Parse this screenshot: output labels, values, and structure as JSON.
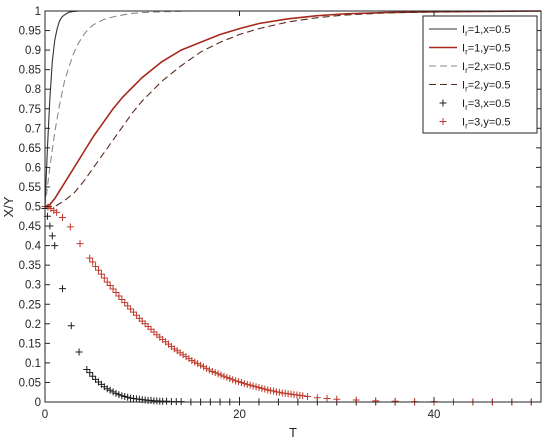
{
  "chart_data": {
    "type": "line",
    "xlabel": "T",
    "ylabel": "X/Y",
    "xlim": [
      0,
      51
    ],
    "ylim": [
      0,
      1
    ],
    "x_ticks": [
      0,
      20,
      40
    ],
    "x_tick_labels": [
      "0",
      "20",
      "40"
    ],
    "y_ticks": [
      0,
      0.05,
      0.1,
      0.15,
      0.2,
      0.25,
      0.3,
      0.35,
      0.4,
      0.45,
      0.5,
      0.55,
      0.6,
      0.65,
      0.7,
      0.75,
      0.8,
      0.85,
      0.9,
      0.95,
      1
    ],
    "y_tick_labels": [
      "0",
      "0.05",
      "0.1",
      "0.15",
      "0.2",
      "0.25",
      "0.3",
      "0.35",
      "0.4",
      "0.45",
      "0.5",
      "0.55",
      "0.6",
      "0.65",
      "0.7",
      "0.75",
      "0.8",
      "0.85",
      "0.9",
      "0.95",
      "1"
    ],
    "grid": false,
    "legend_position": "top-right",
    "series": [
      {
        "name": "Ir=1,x=0.5",
        "label_main": "I",
        "label_sub": "r",
        "label_rest": "=1,x=0.5",
        "style": "solid",
        "marker": "none",
        "color": "#333333",
        "x": [
          0,
          0.25,
          0.5,
          0.75,
          1,
          1.25,
          1.5,
          1.75,
          2,
          2.25,
          2.5,
          3,
          3.5,
          4,
          5,
          6,
          8,
          10,
          15,
          20,
          30,
          40,
          51
        ],
        "y": [
          0.5,
          0.65,
          0.775,
          0.87,
          0.925,
          0.955,
          0.975,
          0.985,
          0.99,
          0.994,
          0.997,
          0.999,
          1,
          1,
          1,
          1,
          1,
          1,
          1,
          1,
          1,
          1,
          1
        ]
      },
      {
        "name": "Ir=1,y=0.5",
        "label_main": "I",
        "label_sub": "r",
        "label_rest": "=1,y=0.5",
        "style": "solid",
        "marker": "none",
        "color": "#a82a1c",
        "x": [
          0,
          0.5,
          1,
          2,
          3,
          4,
          5,
          6,
          7,
          8,
          9,
          10,
          12,
          14,
          16,
          18,
          20,
          22,
          25,
          28,
          31,
          35,
          40,
          45,
          51
        ],
        "y": [
          0.5,
          0.505,
          0.52,
          0.56,
          0.6,
          0.64,
          0.68,
          0.715,
          0.75,
          0.78,
          0.805,
          0.83,
          0.87,
          0.9,
          0.92,
          0.94,
          0.955,
          0.968,
          0.98,
          0.988,
          0.993,
          0.996,
          0.998,
          0.999,
          1
        ]
      },
      {
        "name": "Ir=2,x=0.5",
        "label_main": "I",
        "label_sub": "r",
        "label_rest": "=2,x=0.5",
        "style": "dashed",
        "marker": "none",
        "color": "#8a8a8a",
        "x": [
          0,
          0.5,
          1,
          1.5,
          2,
          2.5,
          3,
          3.5,
          4,
          4.5,
          5,
          6,
          7,
          8,
          9,
          10,
          12,
          15,
          20,
          30,
          51
        ],
        "y": [
          0.5,
          0.6,
          0.69,
          0.76,
          0.82,
          0.86,
          0.895,
          0.92,
          0.94,
          0.955,
          0.965,
          0.978,
          0.985,
          0.99,
          0.994,
          0.996,
          0.998,
          1,
          1,
          1,
          1
        ]
      },
      {
        "name": "Ir=2,y=0.5",
        "label_main": "I",
        "label_sub": "r",
        "label_rest": "=2,y=0.5",
        "style": "dashed",
        "marker": "none",
        "color": "#5a2a1c",
        "x": [
          0,
          1,
          2,
          3,
          4,
          5,
          6,
          7,
          8,
          9,
          10,
          12,
          14,
          16,
          18,
          20,
          22,
          25,
          28,
          31,
          35,
          40,
          45,
          51
        ],
        "y": [
          0.5,
          0.5,
          0.515,
          0.535,
          0.565,
          0.6,
          0.635,
          0.67,
          0.705,
          0.74,
          0.77,
          0.82,
          0.86,
          0.895,
          0.92,
          0.94,
          0.955,
          0.972,
          0.983,
          0.99,
          0.995,
          0.998,
          0.999,
          1
        ]
      },
      {
        "name": "Ir=3,x=0.5",
        "label_main": "I",
        "label_sub": "r",
        "label_rest": "=3,x=0.5",
        "style": "none",
        "marker": "+",
        "color": "#1f1f1f",
        "x": [
          0,
          0.25,
          0.5,
          0.75,
          1,
          1.8,
          2.7,
          3.5,
          4.3,
          4.6,
          4.9,
          5.2,
          5.5,
          5.8,
          6.1,
          6.4,
          6.7,
          7.0,
          7.3,
          7.6,
          7.9,
          8.2,
          8.5,
          8.8,
          9.1,
          9.4,
          9.7,
          10.0,
          10.3,
          10.6,
          10.9,
          11.2,
          11.5,
          11.8,
          12.1,
          12.5,
          13,
          13.5,
          14,
          15,
          16,
          17,
          18,
          19,
          20,
          22,
          24,
          26,
          28,
          30,
          32,
          34,
          36,
          38,
          40,
          42,
          44,
          46,
          48,
          50
        ],
        "y": [
          0.495,
          0.475,
          0.45,
          0.425,
          0.4,
          0.29,
          0.195,
          0.128,
          0.083,
          0.075,
          0.066,
          0.058,
          0.051,
          0.045,
          0.039,
          0.034,
          0.03,
          0.026,
          0.022,
          0.019,
          0.016,
          0.014,
          0.012,
          0.01,
          0.009,
          0.008,
          0.007,
          0.006,
          0.005,
          0.004,
          0.004,
          0.003,
          0.003,
          0.002,
          0.002,
          0.002,
          0.001,
          0.001,
          0.001,
          0,
          0,
          0,
          0,
          0,
          0,
          0,
          0,
          0,
          0,
          0,
          0,
          0,
          0,
          0,
          0,
          0,
          0,
          0,
          0,
          0
        ]
      },
      {
        "name": "Ir=3,y=0.5",
        "label_main": "I",
        "label_sub": "r",
        "label_rest": "=3,y=0.5",
        "style": "none",
        "marker": "+",
        "color": "#c0392b",
        "x": [
          0,
          0.3,
          0.6,
          0.9,
          1.2,
          1.8,
          2.6,
          3.6,
          4.6,
          4.9,
          5.2,
          5.5,
          5.8,
          6.1,
          6.4,
          6.7,
          7.0,
          7.3,
          7.6,
          7.9,
          8.2,
          8.5,
          8.8,
          9.1,
          9.4,
          9.7,
          10.0,
          10.3,
          10.6,
          10.9,
          11.2,
          11.5,
          11.8,
          12.1,
          12.4,
          12.7,
          13.0,
          13.3,
          13.6,
          13.9,
          14.2,
          14.5,
          14.8,
          15.1,
          15.4,
          15.7,
          16.0,
          16.3,
          16.6,
          16.9,
          17.2,
          17.5,
          17.8,
          18.1,
          18.4,
          18.7,
          19.0,
          19.3,
          19.6,
          19.9,
          20.2,
          20.5,
          20.8,
          21.1,
          21.4,
          21.7,
          22.0,
          22.3,
          22.6,
          22.9,
          23.2,
          23.5,
          23.8,
          24.1,
          24.4,
          24.7,
          25.0,
          25.3,
          25.6,
          25.9,
          26.2,
          26.5,
          27,
          28,
          29,
          30,
          32,
          34,
          36,
          38,
          40,
          42,
          44,
          46,
          48,
          50
        ],
        "y": [
          0.5,
          0.498,
          0.495,
          0.49,
          0.485,
          0.472,
          0.448,
          0.405,
          0.368,
          0.358,
          0.347,
          0.337,
          0.327,
          0.317,
          0.307,
          0.298,
          0.289,
          0.28,
          0.271,
          0.262,
          0.254,
          0.246,
          0.238,
          0.23,
          0.222,
          0.214,
          0.207,
          0.2,
          0.193,
          0.186,
          0.179,
          0.172,
          0.166,
          0.16,
          0.154,
          0.148,
          0.142,
          0.136,
          0.131,
          0.126,
          0.121,
          0.116,
          0.111,
          0.106,
          0.102,
          0.098,
          0.094,
          0.09,
          0.086,
          0.082,
          0.078,
          0.075,
          0.072,
          0.069,
          0.066,
          0.063,
          0.06,
          0.057,
          0.054,
          0.052,
          0.05,
          0.047,
          0.045,
          0.043,
          0.041,
          0.039,
          0.037,
          0.035,
          0.033,
          0.031,
          0.029,
          0.028,
          0.026,
          0.025,
          0.023,
          0.022,
          0.021,
          0.02,
          0.019,
          0.018,
          0.017,
          0.016,
          0.014,
          0.011,
          0.009,
          0.007,
          0.005,
          0.003,
          0.002,
          0.001,
          0.001,
          0,
          0,
          0,
          0,
          0
        ]
      }
    ]
  }
}
